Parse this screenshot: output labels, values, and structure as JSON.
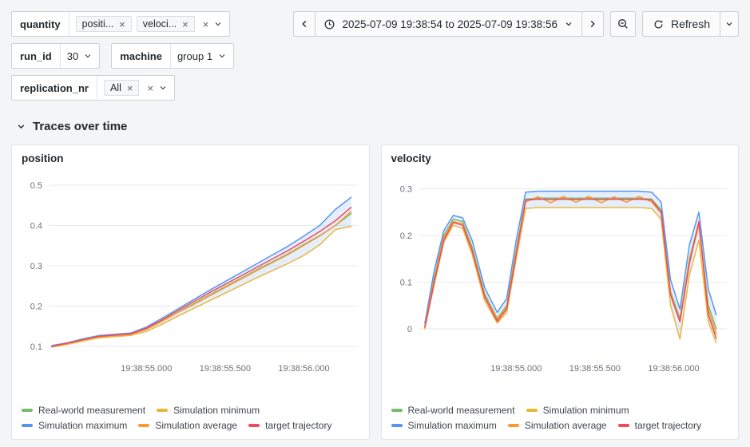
{
  "icons": {
    "close": "×"
  },
  "filters": {
    "quantity": {
      "label": "quantity",
      "values": [
        {
          "text": "positi..."
        },
        {
          "text": "veloci..."
        }
      ]
    },
    "run_id": {
      "label": "run_id",
      "value": "30"
    },
    "machine": {
      "label": "machine",
      "value": "group 1"
    },
    "replication_nr": {
      "label": "replication_nr",
      "values": [
        {
          "text": "All"
        }
      ]
    }
  },
  "timepicker": {
    "range": "2025-07-09 19:38:54 to 2025-07-09 19:38:56"
  },
  "refresh": {
    "label": "Refresh"
  },
  "section": {
    "title": "Traces over time"
  },
  "chart_data": [
    {
      "type": "line",
      "title": "position",
      "xlabel": "",
      "ylabel": "",
      "grid": "horizontal",
      "legend_position": "bottom",
      "xlim": [
        54.38,
        56.34
      ],
      "ylim": [
        0.08,
        0.52
      ],
      "xticks": [
        {
          "v": 55.0,
          "label": "19:38:55.000"
        },
        {
          "v": 55.5,
          "label": "19:38:55.500"
        },
        {
          "v": 56.0,
          "label": "19:38:56.000"
        }
      ],
      "yticks": [
        {
          "v": 0.1,
          "label": "0.1"
        },
        {
          "v": 0.2,
          "label": "0.2"
        },
        {
          "v": 0.3,
          "label": "0.3"
        },
        {
          "v": 0.4,
          "label": "0.4"
        },
        {
          "v": 0.5,
          "label": "0.5"
        }
      ],
      "x": [
        54.4,
        54.5,
        54.6,
        54.7,
        54.8,
        54.9,
        55.0,
        55.1,
        55.2,
        55.3,
        55.4,
        55.5,
        55.6,
        55.7,
        55.8,
        55.9,
        56.0,
        56.1,
        56.2,
        56.3
      ],
      "series": [
        {
          "name": "Real-world measurement",
          "color": "#73BF69",
          "values": [
            0.1,
            0.107,
            0.116,
            0.124,
            0.127,
            0.13,
            0.143,
            0.163,
            0.185,
            0.206,
            0.227,
            0.248,
            0.269,
            0.29,
            0.31,
            0.33,
            0.353,
            0.375,
            0.4,
            0.43
          ]
        },
        {
          "name": "Simulation minimum",
          "color": "#EAB839",
          "values": [
            0.098,
            0.105,
            0.113,
            0.121,
            0.124,
            0.127,
            0.137,
            0.155,
            0.175,
            0.194,
            0.213,
            0.232,
            0.251,
            0.27,
            0.288,
            0.306,
            0.326,
            0.352,
            0.39,
            0.398
          ]
        },
        {
          "name": "Simulation maximum",
          "color": "#5794F2",
          "values": [
            0.102,
            0.109,
            0.119,
            0.127,
            0.13,
            0.133,
            0.148,
            0.17,
            0.193,
            0.216,
            0.239,
            0.261,
            0.283,
            0.305,
            0.327,
            0.349,
            0.374,
            0.4,
            0.44,
            0.47
          ]
        },
        {
          "name": "Simulation average",
          "color": "#FF9830",
          "values": [
            0.1,
            0.107,
            0.116,
            0.124,
            0.127,
            0.129,
            0.142,
            0.162,
            0.184,
            0.204,
            0.225,
            0.246,
            0.267,
            0.288,
            0.308,
            0.328,
            0.351,
            0.374,
            0.4,
            0.435
          ]
        },
        {
          "name": "target trajectory",
          "color": "#F2495C",
          "values": [
            0.1,
            0.108,
            0.117,
            0.125,
            0.128,
            0.131,
            0.145,
            0.166,
            0.189,
            0.211,
            0.233,
            0.254,
            0.275,
            0.296,
            0.317,
            0.338,
            0.361,
            0.385,
            0.412,
            0.445
          ]
        }
      ],
      "band": {
        "lower": "Simulation minimum",
        "upper": "Simulation maximum",
        "fill": "rgba(87,148,242,0.16)"
      }
    },
    {
      "type": "line",
      "title": "velocity",
      "xlabel": "",
      "ylabel": "",
      "grid": "horizontal",
      "legend_position": "bottom",
      "xlim": [
        54.38,
        56.34
      ],
      "ylim": [
        -0.055,
        0.325
      ],
      "xticks": [
        {
          "v": 55.0,
          "label": "19:38:55.000"
        },
        {
          "v": 55.5,
          "label": "19:38:55.500"
        },
        {
          "v": 56.0,
          "label": "19:38:56.000"
        }
      ],
      "yticks": [
        {
          "v": 0.0,
          "label": "0"
        },
        {
          "v": 0.1,
          "label": "0.1"
        },
        {
          "v": 0.2,
          "label": "0.2"
        },
        {
          "v": 0.3,
          "label": "0.3"
        }
      ],
      "x": [
        54.42,
        54.48,
        54.54,
        54.6,
        54.66,
        54.72,
        54.8,
        54.88,
        54.94,
        55.0,
        55.06,
        55.14,
        55.22,
        55.3,
        55.38,
        55.46,
        55.54,
        55.62,
        55.7,
        55.78,
        55.86,
        55.92,
        55.98,
        56.04,
        56.1,
        56.16,
        56.22,
        56.27
      ],
      "series": [
        {
          "name": "Real-world measurement",
          "color": "#73BF69",
          "values": [
            0.005,
            0.11,
            0.2,
            0.235,
            0.23,
            0.175,
            0.075,
            0.022,
            0.05,
            0.17,
            0.278,
            0.28,
            0.28,
            0.28,
            0.28,
            0.28,
            0.28,
            0.28,
            0.28,
            0.28,
            0.278,
            0.255,
            0.08,
            0.022,
            0.15,
            0.228,
            0.05,
            0.0
          ]
        },
        {
          "name": "Simulation minimum",
          "color": "#EAB839",
          "values": [
            0.0,
            0.095,
            0.185,
            0.222,
            0.215,
            0.16,
            0.06,
            0.012,
            0.035,
            0.15,
            0.258,
            0.26,
            0.26,
            0.26,
            0.26,
            0.26,
            0.26,
            0.26,
            0.26,
            0.26,
            0.258,
            0.235,
            0.05,
            -0.022,
            0.115,
            0.19,
            0.015,
            -0.03
          ]
        },
        {
          "name": "Simulation maximum",
          "color": "#5794F2",
          "values": [
            0.012,
            0.125,
            0.21,
            0.243,
            0.238,
            0.19,
            0.088,
            0.035,
            0.065,
            0.19,
            0.293,
            0.295,
            0.295,
            0.295,
            0.295,
            0.295,
            0.295,
            0.295,
            0.295,
            0.295,
            0.293,
            0.272,
            0.105,
            0.042,
            0.18,
            0.25,
            0.085,
            0.03
          ]
        },
        {
          "name": "Simulation average",
          "color": "#FF9830",
          "values": [
            0.005,
            0.105,
            0.195,
            0.23,
            0.225,
            0.17,
            0.07,
            0.02,
            0.045,
            0.165,
            0.272,
            0.283,
            0.27,
            0.284,
            0.271,
            0.284,
            0.27,
            0.283,
            0.271,
            0.284,
            0.272,
            0.248,
            0.075,
            0.018,
            0.145,
            0.222,
            0.04,
            -0.01
          ]
        },
        {
          "name": "target trajectory",
          "color": "#F2495C",
          "values": [
            0.003,
            0.1,
            0.19,
            0.228,
            0.222,
            0.168,
            0.068,
            0.016,
            0.042,
            0.16,
            0.276,
            0.278,
            0.277,
            0.278,
            0.277,
            0.278,
            0.277,
            0.278,
            0.277,
            0.278,
            0.276,
            0.25,
            0.072,
            0.015,
            0.14,
            0.23,
            0.03,
            -0.02
          ]
        }
      ],
      "band": {
        "lower": "Simulation minimum",
        "upper": "Simulation maximum",
        "fill": "rgba(87,148,242,0.16)"
      }
    }
  ]
}
